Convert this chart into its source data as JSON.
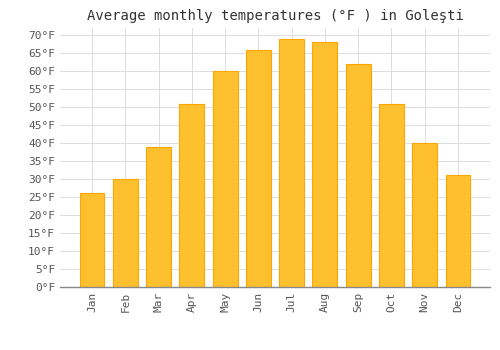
{
  "title": "Average monthly temperatures (°F ) in Goleşti",
  "months": [
    "Jan",
    "Feb",
    "Mar",
    "Apr",
    "May",
    "Jun",
    "Jul",
    "Aug",
    "Sep",
    "Oct",
    "Nov",
    "Dec"
  ],
  "values": [
    26,
    30,
    39,
    51,
    60,
    66,
    69,
    68,
    62,
    51,
    40,
    31
  ],
  "bar_color": "#FFC030",
  "bar_edge_color": "#FFA500",
  "background_color": "#FFFFFF",
  "grid_color": "#DDDDDD",
  "text_color": "#555555",
  "title_color": "#333333",
  "ylim": [
    0,
    72
  ],
  "yticks": [
    0,
    5,
    10,
    15,
    20,
    25,
    30,
    35,
    40,
    45,
    50,
    55,
    60,
    65,
    70
  ],
  "title_fontsize": 10,
  "tick_fontsize": 8,
  "bar_width": 0.75,
  "font_family": "monospace"
}
